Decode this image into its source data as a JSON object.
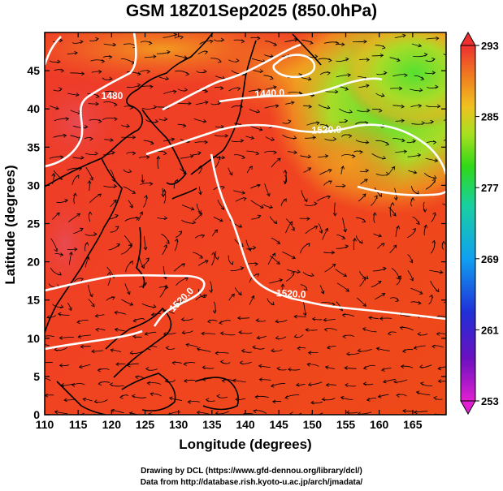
{
  "title": "GSM 18Z01Sep2025 (850.0hPa)",
  "x_axis": {
    "label": "Longitude (degrees)",
    "range": [
      110,
      170
    ],
    "ticks": [
      110,
      115,
      120,
      125,
      130,
      135,
      140,
      145,
      150,
      155,
      160,
      165
    ]
  },
  "y_axis": {
    "label": "Latitude  (degrees)",
    "range": [
      0,
      50
    ],
    "ticks": [
      0,
      5,
      10,
      15,
      20,
      25,
      30,
      35,
      40,
      45
    ]
  },
  "colorbar": {
    "ticks": [
      293,
      285,
      277,
      269,
      261,
      253
    ],
    "range": [
      253,
      293
    ]
  },
  "contour_labels": [
    "1480",
    "1440.0",
    "1520.0",
    "1520.0",
    "1520.0"
  ],
  "credits": {
    "line1": "Drawing by DCL (https://www.gfd-dennou.org/library/dcl/)",
    "line2": "Data from http://database.rish.kyoto-u.ac.jp/arch/jmadata/"
  }
}
